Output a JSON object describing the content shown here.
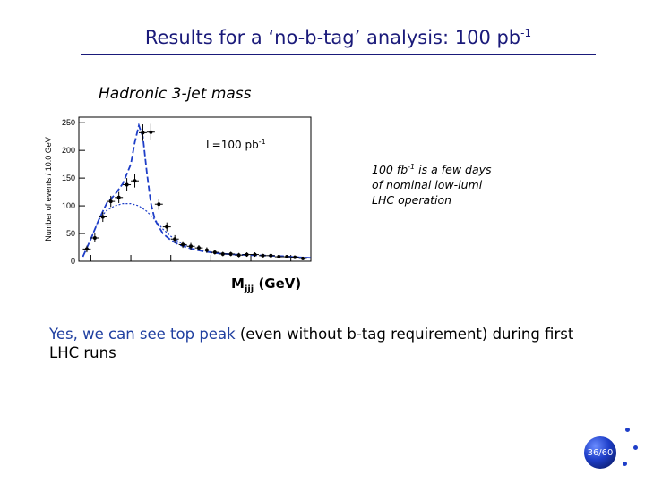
{
  "slide": {
    "title_main": "Results for a ‘no-b-tag’ analysis: 100 pb",
    "title_exp": "-1",
    "plot_heading": "Hadronic 3-jet mass",
    "note_line1_pre": "100 fb",
    "note_line1_exp": "-1",
    "note_line1_post": " is a few days",
    "note_line2": "of nominal low-lumi",
    "note_line3": "LHC operation",
    "xlabel_main": "M",
    "xlabel_sub": "jjj",
    "xlabel_unit": " (GeV)",
    "conclusion_hl": "Yes, we can see top peak",
    "conclusion_rest": " (even without b-tag requirement) during first  LHC runs",
    "slide_number": "36/60"
  },
  "colors": {
    "title": "#1a1a7a",
    "highlight": "#1f3fa0",
    "fit": "#1e3ec8",
    "points": "#000000"
  },
  "chart_data": {
    "type": "scatter",
    "ylabel": "Number of events / 10.0 GeV",
    "annotation_pre": "L=100 pb",
    "annotation_exp": "-1",
    "xlim": [
      85,
      375
    ],
    "ylim": [
      0,
      260
    ],
    "xticks": [
      100,
      150,
      200,
      250,
      300,
      350
    ],
    "yticks": [
      0,
      50,
      100,
      150,
      200,
      250
    ],
    "series": [
      {
        "kind": "points",
        "x": [
          95,
          105,
          115,
          125,
          135,
          145,
          155,
          165,
          175,
          185,
          195,
          205,
          215,
          225,
          235,
          245,
          255,
          265,
          275,
          285,
          295,
          305,
          315,
          325,
          335,
          345,
          355,
          365
        ],
        "y": [
          22,
          42,
          80,
          108,
          115,
          138,
          145,
          232,
          233,
          103,
          62,
          40,
          30,
          27,
          24,
          20,
          16,
          13,
          13,
          11,
          12,
          12,
          10,
          10,
          8,
          8,
          7,
          5
        ],
        "yerr": [
          6,
          8,
          9,
          10,
          10,
          12,
          12,
          15,
          15,
          10,
          8,
          7,
          6,
          6,
          5,
          5,
          4,
          4,
          4,
          4,
          4,
          4,
          3,
          3,
          3,
          3,
          3,
          3
        ]
      },
      {
        "kind": "fit",
        "x": [
          90,
          100,
          110,
          120,
          130,
          140,
          150,
          155,
          160,
          165,
          170,
          175,
          180,
          190,
          200,
          210,
          220,
          230,
          240,
          260,
          280,
          300,
          320,
          340,
          360,
          375
        ],
        "y": [
          8,
          40,
          75,
          105,
          120,
          140,
          175,
          215,
          245,
          225,
          160,
          105,
          75,
          50,
          38,
          30,
          25,
          21,
          18,
          14,
          12,
          11,
          10,
          9,
          7,
          6
        ]
      },
      {
        "kind": "background",
        "x": [
          100,
          110,
          120,
          130,
          140,
          150,
          160,
          170,
          180,
          190,
          200,
          210,
          220
        ],
        "y": [
          40,
          75,
          92,
          100,
          104,
          104,
          100,
          90,
          75,
          58,
          45,
          35,
          28
        ]
      }
    ]
  }
}
